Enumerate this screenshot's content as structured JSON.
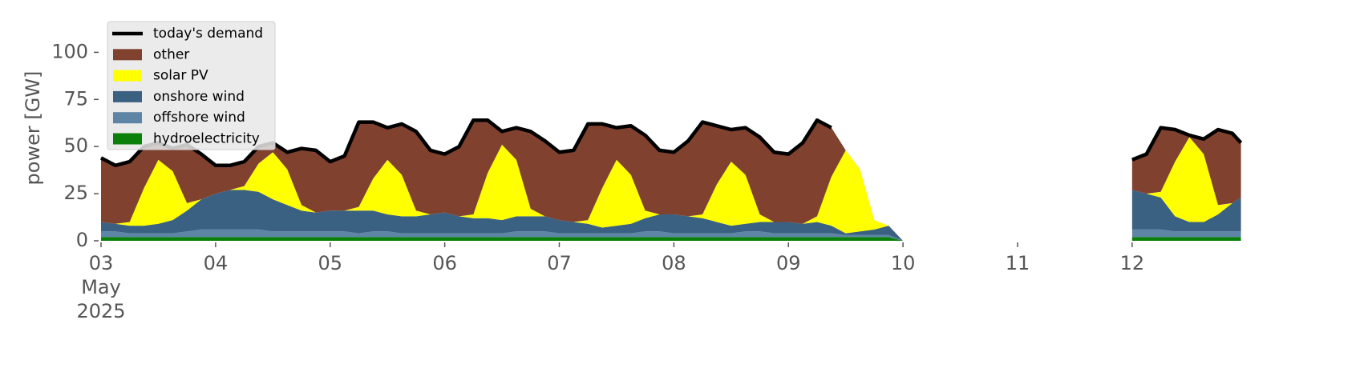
{
  "chart_data": {
    "type": "stacked_area",
    "ylabel": "power [GW]",
    "x": [
      3,
      3.125,
      3.25,
      3.375,
      3.5,
      3.625,
      3.75,
      3.875,
      4,
      4.125,
      4.25,
      4.375,
      4.5,
      4.625,
      4.75,
      4.875,
      5,
      5.125,
      5.25,
      5.375,
      5.5,
      5.625,
      5.75,
      5.875,
      6,
      6.125,
      6.25,
      6.375,
      6.5,
      6.625,
      6.75,
      6.875,
      7,
      7.125,
      7.25,
      7.375,
      7.5,
      7.625,
      7.75,
      7.875,
      8,
      8.125,
      8.25,
      8.375,
      8.5,
      8.625,
      8.75,
      8.875,
      9,
      9.125,
      9.25,
      9.375,
      9.5,
      9.625,
      9.75,
      9.875,
      10,
      11,
      12,
      12.125,
      12.25,
      12.375,
      12.5,
      12.625,
      12.75,
      12.875,
      12.95
    ],
    "series": [
      {
        "name": "today's demand",
        "style": "line",
        "color": "#000000",
        "values": [
          44,
          40,
          42,
          50,
          52,
          49,
          51,
          46,
          40,
          40,
          42,
          50,
          52,
          47,
          49,
          48,
          42,
          45,
          63,
          63,
          60,
          62,
          58,
          48,
          46,
          50,
          64,
          64,
          58,
          60,
          58,
          53,
          47,
          48,
          62,
          62,
          60,
          61,
          56,
          48,
          47,
          53,
          63,
          61,
          59,
          60,
          55,
          47,
          46,
          52,
          64,
          60,
          null,
          null,
          null,
          null,
          null,
          null,
          43,
          46,
          60,
          59,
          56,
          54,
          59,
          57,
          52
        ]
      },
      {
        "name": "other",
        "style": "area",
        "color": "#80412f",
        "values": [
          34,
          31,
          32,
          22,
          9,
          12,
          31,
          24,
          15,
          13,
          13,
          9,
          5,
          9,
          30,
          33,
          26,
          29,
          45,
          30,
          17,
          27,
          42,
          34,
          31,
          37,
          50,
          28,
          7,
          17,
          41,
          40,
          36,
          38,
          51,
          34,
          17,
          26,
          40,
          34,
          33,
          40,
          49,
          31,
          17,
          25,
          41,
          37,
          36,
          43,
          51,
          26,
          0,
          0,
          0,
          0,
          0,
          null,
          16,
          21,
          34,
          17,
          1,
          8,
          40,
          37,
          29
        ]
      },
      {
        "name": "solar PV",
        "style": "area",
        "color": "#ffff00",
        "values": [
          0,
          0,
          2,
          20,
          34,
          26,
          4,
          0,
          0,
          0,
          2,
          15,
          25,
          19,
          3,
          0,
          0,
          0,
          2,
          17,
          29,
          22,
          3,
          0,
          0,
          0,
          2,
          24,
          40,
          30,
          4,
          0,
          0,
          0,
          2,
          21,
          35,
          26,
          4,
          0,
          0,
          0,
          2,
          20,
          34,
          26,
          4,
          0,
          0,
          0,
          3,
          26,
          44,
          33,
          5,
          0,
          0,
          null,
          0,
          0,
          3,
          29,
          45,
          36,
          5,
          0,
          0
        ]
      },
      {
        "name": "onshore wind",
        "style": "area",
        "color": "#3b6182",
        "values": [
          5,
          4,
          4,
          4,
          5,
          7,
          11,
          16,
          19,
          21,
          21,
          20,
          17,
          14,
          11,
          10,
          11,
          11,
          12,
          11,
          9,
          9,
          9,
          10,
          11,
          9,
          8,
          8,
          7,
          8,
          8,
          8,
          7,
          6,
          5,
          3,
          4,
          5,
          7,
          9,
          10,
          9,
          8,
          6,
          4,
          4,
          5,
          6,
          6,
          5,
          6,
          4,
          1,
          2,
          3,
          5,
          0,
          null,
          21,
          19,
          17,
          8,
          5,
          5,
          9,
          15,
          18
        ]
      },
      {
        "name": "offshore wind",
        "style": "area",
        "color": "#5e84a6",
        "values": [
          3,
          3,
          2,
          2,
          2,
          2,
          3,
          4,
          4,
          4,
          4,
          4,
          3,
          3,
          3,
          3,
          3,
          3,
          2,
          3,
          3,
          2,
          2,
          2,
          2,
          2,
          2,
          2,
          2,
          3,
          3,
          3,
          2,
          2,
          2,
          2,
          2,
          2,
          3,
          3,
          2,
          2,
          2,
          2,
          2,
          3,
          3,
          2,
          2,
          2,
          2,
          2,
          1,
          1,
          1,
          1,
          0,
          null,
          4,
          4,
          4,
          3,
          3,
          3,
          3,
          3,
          3
        ]
      },
      {
        "name": "hydroelectricity",
        "style": "area",
        "color": "#0a800a",
        "values": [
          2,
          2,
          2,
          2,
          2,
          2,
          2,
          2,
          2,
          2,
          2,
          2,
          2,
          2,
          2,
          2,
          2,
          2,
          2,
          2,
          2,
          2,
          2,
          2,
          2,
          2,
          2,
          2,
          2,
          2,
          2,
          2,
          2,
          2,
          2,
          2,
          2,
          2,
          2,
          2,
          2,
          2,
          2,
          2,
          2,
          2,
          2,
          2,
          2,
          2,
          2,
          2,
          2,
          2,
          2,
          2,
          0,
          null,
          2,
          2,
          2,
          2,
          2,
          2,
          2,
          2,
          2
        ]
      }
    ],
    "xlim": [
      3,
      12.96
    ],
    "xticks": [
      {
        "value": 3,
        "label": "03\nMay\n2025"
      },
      {
        "value": 4,
        "label": "04"
      },
      {
        "value": 5,
        "label": "05"
      },
      {
        "value": 6,
        "label": "06"
      },
      {
        "value": 7,
        "label": "07"
      },
      {
        "value": 8,
        "label": "08"
      },
      {
        "value": 9,
        "label": "09"
      },
      {
        "value": 10,
        "label": "10"
      },
      {
        "value": 11,
        "label": "11"
      },
      {
        "value": 12,
        "label": "12"
      }
    ],
    "ylim": [
      0,
      118
    ],
    "yticks": [
      0,
      25,
      50,
      75,
      100
    ],
    "legend": "upper left",
    "grid": false
  }
}
